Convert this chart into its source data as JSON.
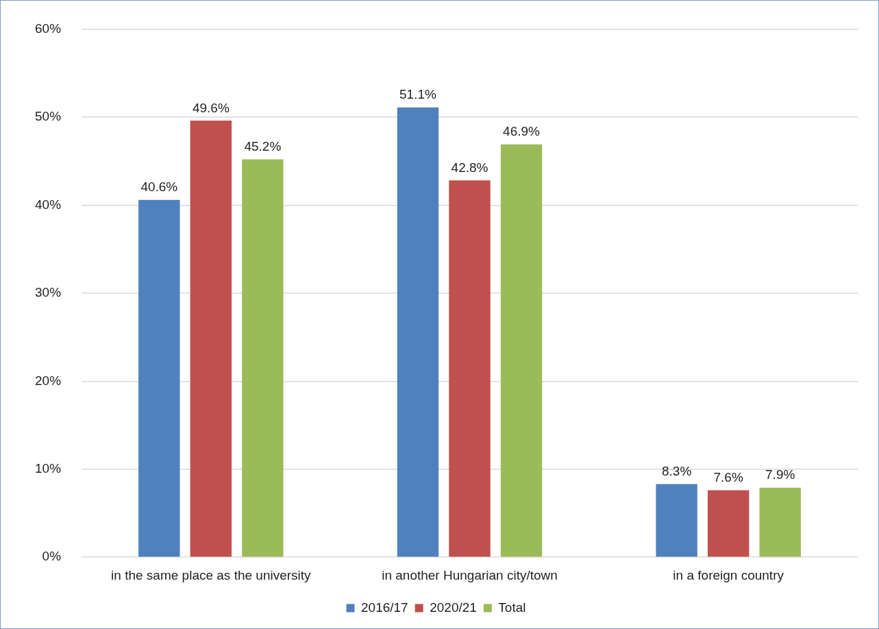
{
  "chart_data": {
    "type": "bar",
    "categories": [
      "in the same place as the university",
      "in another Hungarian city/town",
      "in a foreign country"
    ],
    "series": [
      {
        "name": "2016/17",
        "color": "#4f81bd",
        "values": [
          40.6,
          51.1,
          8.3
        ]
      },
      {
        "name": "2020/21",
        "color": "#c0504d",
        "values": [
          49.6,
          42.8,
          7.6
        ]
      },
      {
        "name": "Total",
        "color": "#9bbb59",
        "values": [
          45.2,
          46.9,
          7.9
        ]
      }
    ],
    "ylim": [
      0,
      60
    ],
    "yticks": [
      {
        "value": 0,
        "label": "0%"
      },
      {
        "value": 10,
        "label": "10%"
      },
      {
        "value": 20,
        "label": "20%"
      },
      {
        "value": 30,
        "label": "30%"
      },
      {
        "value": 40,
        "label": "40%"
      },
      {
        "value": 50,
        "label": "50%"
      },
      {
        "value": 60,
        "label": "60%"
      }
    ],
    "grid": "y",
    "legend": "bottom",
    "value_labels": [
      [
        "40.6%",
        "51.1%",
        "8.3%"
      ],
      [
        "49.6%",
        "42.8%",
        "7.6%"
      ],
      [
        "45.2%",
        "46.9%",
        "7.9%"
      ]
    ]
  }
}
